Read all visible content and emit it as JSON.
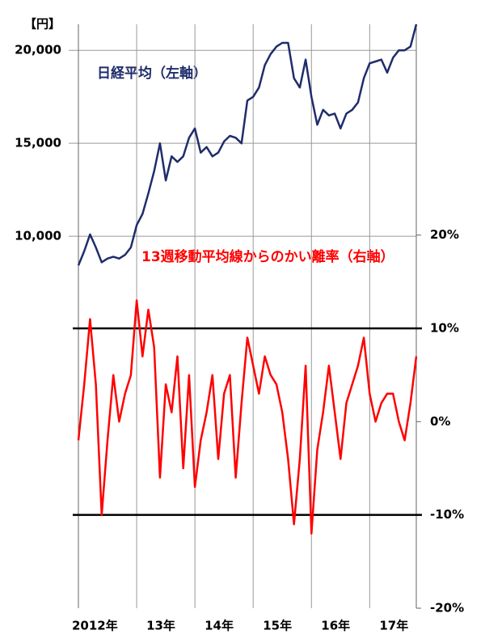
{
  "chart_data": {
    "type": "line",
    "y_unit_label": "【円】",
    "annotations": [
      "日経平均（左軸）",
      "13週移動平均線からのかい離率（右軸）"
    ],
    "xlim": [
      2012,
      2017.8
    ],
    "xticks": [
      {
        "value": 2012,
        "label": "2012年"
      },
      {
        "value": 2013,
        "label": "13年"
      },
      {
        "value": 2014,
        "label": "14年"
      },
      {
        "value": 2015,
        "label": "15年"
      },
      {
        "value": 2016,
        "label": "16年"
      },
      {
        "value": 2017,
        "label": "17年"
      }
    ],
    "ylim": [
      -10000,
      21400
    ],
    "yticks": [
      {
        "value": 10000,
        "label": "10,000"
      },
      {
        "value": 15000,
        "label": "15,000"
      },
      {
        "value": 20000,
        "label": "20,000"
      }
    ],
    "y2lim": [
      -20,
      42.6
    ],
    "y2ticks": [
      {
        "value": -20,
        "label": "-20%"
      },
      {
        "value": -10,
        "label": "-10%"
      },
      {
        "value": 0,
        "label": "0%"
      },
      {
        "value": 10,
        "label": "10%"
      },
      {
        "value": 20,
        "label": "20%"
      }
    ],
    "y2_reference_lines": [
      10,
      -10
    ],
    "grid": true,
    "x": [
      2012.0,
      2012.1,
      2012.2,
      2012.3,
      2012.4,
      2012.5,
      2012.6,
      2012.7,
      2012.8,
      2012.9,
      2013.0,
      2013.1,
      2013.2,
      2013.3,
      2013.4,
      2013.5,
      2013.6,
      2013.7,
      2013.8,
      2013.9,
      2014.0,
      2014.1,
      2014.2,
      2014.3,
      2014.4,
      2014.5,
      2014.6,
      2014.7,
      2014.8,
      2014.9,
      2015.0,
      2015.1,
      2015.2,
      2015.3,
      2015.4,
      2015.5,
      2015.6,
      2015.7,
      2015.8,
      2015.9,
      2016.0,
      2016.1,
      2016.2,
      2016.3,
      2016.4,
      2016.5,
      2016.6,
      2016.7,
      2016.8,
      2016.9,
      2017.0,
      2017.1,
      2017.2,
      2017.3,
      2017.4,
      2017.5,
      2017.6,
      2017.7,
      2017.8
    ],
    "series": [
      {
        "color": "#1f2d6b",
        "axis": "y",
        "values": [
          8430,
          9200,
          10100,
          9400,
          8600,
          8800,
          8900,
          8800,
          9000,
          9400,
          10600,
          11200,
          12300,
          13500,
          15000,
          13000,
          14300,
          14000,
          14300,
          15300,
          15800,
          14500,
          14800,
          14300,
          14500,
          15100,
          15400,
          15300,
          15000,
          17300,
          17500,
          18000,
          19200,
          19800,
          20200,
          20400,
          20400,
          18500,
          18000,
          19500,
          17500,
          16000,
          16800,
          16500,
          16600,
          15800,
          16600,
          16800,
          17200,
          18500,
          19300,
          19400,
          19500,
          18800,
          19600,
          20000,
          20000,
          20200,
          21400
        ]
      },
      {
        "color": "#ff0000",
        "axis": "y2",
        "values": [
          -2,
          4,
          11,
          4,
          -10,
          -2,
          5,
          0,
          3,
          5,
          13,
          7,
          12,
          8,
          -6,
          4,
          1,
          7,
          -5,
          5,
          -7,
          -2,
          1,
          5,
          -4,
          3,
          5,
          -6,
          2,
          9,
          6,
          3,
          7,
          5,
          4,
          1,
          -4,
          -11,
          -4,
          6,
          -12,
          -3,
          1,
          6,
          1,
          -4,
          2,
          4,
          6,
          9,
          3,
          0,
          2,
          3,
          3,
          0,
          -2,
          2,
          7
        ]
      }
    ]
  }
}
